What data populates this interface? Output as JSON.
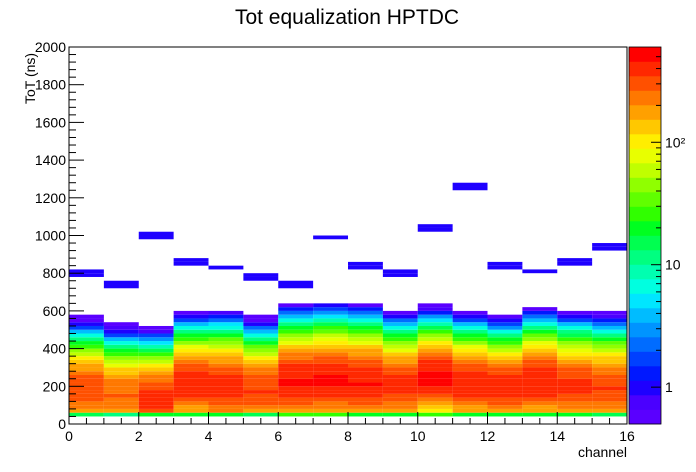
{
  "chart_data": {
    "type": "heatmap",
    "title": "Tot equalization HPTDC",
    "xlabel": "channel",
    "ylabel": "ToT (ns)",
    "xlim": [
      0,
      16
    ],
    "ylim": [
      0,
      2000
    ],
    "x_ticks": [
      "0",
      "2",
      "4",
      "6",
      "8",
      "10",
      "12",
      "14",
      "16"
    ],
    "y_ticks": [
      "0",
      "200",
      "400",
      "600",
      "800",
      "1000",
      "1200",
      "1400",
      "1600",
      "1800",
      "2000"
    ],
    "z_scale": "log",
    "z_range": [
      0.5,
      600
    ],
    "z_ticks": [
      {
        "value": 1,
        "label": "1"
      },
      {
        "value": 10,
        "label": "10"
      },
      {
        "value": 100,
        "label": "10²"
      }
    ],
    "palette": [
      "#5a00ff",
      "#4a00ff",
      "#1e00ff",
      "#0018ff",
      "#0040ff",
      "#006cff",
      "#0094ff",
      "#00bcff",
      "#00e6ff",
      "#00ffe0",
      "#00ffb0",
      "#00ff80",
      "#00ff50",
      "#00ff20",
      "#30ff00",
      "#60ff00",
      "#90ff00",
      "#c0ff00",
      "#e8ff00",
      "#ffee00",
      "#ffc800",
      "#ffa000",
      "#ff7800",
      "#ff5000",
      "#ff2800",
      "#ff0000"
    ],
    "bin_width_y": 20,
    "channels": [
      {
        "channel": 0,
        "peak": 190,
        "spread": 100,
        "max_count": 320,
        "max_tot": 810
      },
      {
        "channel": 1,
        "peak": 170,
        "spread": 95,
        "max_count": 260,
        "max_tot": 745
      },
      {
        "channel": 2,
        "peak": 140,
        "spread": 100,
        "max_count": 380,
        "max_tot": 1005
      },
      {
        "channel": 3,
        "peak": 220,
        "spread": 100,
        "max_count": 420,
        "max_tot": 870
      },
      {
        "channel": 4,
        "peak": 200,
        "spread": 110,
        "max_count": 400,
        "max_tot": 835
      },
      {
        "channel": 5,
        "peak": 190,
        "spread": 100,
        "max_count": 340,
        "max_tot": 785
      },
      {
        "channel": 6,
        "peak": 230,
        "spread": 110,
        "max_count": 460,
        "max_tot": 740
      },
      {
        "channel": 7,
        "peak": 240,
        "spread": 110,
        "max_count": 470,
        "max_tot": 995
      },
      {
        "channel": 8,
        "peak": 230,
        "spread": 110,
        "max_count": 450,
        "max_tot": 850
      },
      {
        "channel": 9,
        "peak": 210,
        "spread": 105,
        "max_count": 380,
        "max_tot": 800
      },
      {
        "channel": 10,
        "peak": 250,
        "spread": 100,
        "max_count": 480,
        "max_tot": 1045
      },
      {
        "channel": 11,
        "peak": 220,
        "spread": 100,
        "max_count": 420,
        "max_tot": 1270
      },
      {
        "channel": 12,
        "peak": 200,
        "spread": 100,
        "max_count": 400,
        "max_tot": 840
      },
      {
        "channel": 13,
        "peak": 230,
        "spread": 105,
        "max_count": 440,
        "max_tot": 815
      },
      {
        "channel": 14,
        "peak": 210,
        "spread": 105,
        "max_count": 360,
        "max_tot": 865
      },
      {
        "channel": 15,
        "peak": 200,
        "spread": 105,
        "max_count": 330,
        "max_tot": 950
      }
    ]
  }
}
